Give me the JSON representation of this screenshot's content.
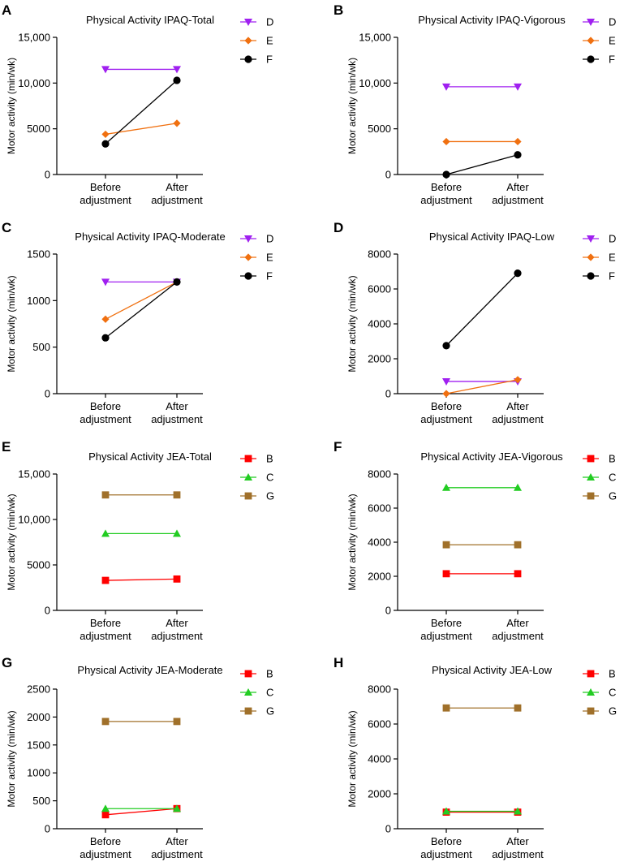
{
  "chart_data": [
    {
      "panel": "A",
      "type": "line",
      "title": "Physical Activity IPAQ-Total",
      "ylabel": "Motor activity (min/wk)",
      "categories": [
        [
          "Before",
          "adjustment"
        ],
        [
          "After",
          "adjustment"
        ]
      ],
      "ylim": [
        0,
        15000
      ],
      "yticks": [
        0,
        5000,
        10000,
        15000
      ],
      "ytick_labels": [
        "0",
        "5000",
        "10,000",
        "15,000"
      ],
      "series": [
        {
          "name": "D",
          "color": "#a020f0",
          "marker": "triangle-down",
          "values": [
            11500,
            11500
          ]
        },
        {
          "name": "E",
          "color": "#f07010",
          "marker": "diamond",
          "values": [
            4400,
            5600
          ]
        },
        {
          "name": "F",
          "color": "#000000",
          "marker": "circle",
          "values": [
            3350,
            10300
          ]
        }
      ]
    },
    {
      "panel": "B",
      "type": "line",
      "title": "Physical Activity IPAQ-Vigorous",
      "ylabel": "Motor activity (min/wk)",
      "categories": [
        [
          "Before",
          "adjustment"
        ],
        [
          "After",
          "adjustment"
        ]
      ],
      "ylim": [
        0,
        15000
      ],
      "yticks": [
        0,
        5000,
        10000,
        15000
      ],
      "ytick_labels": [
        "0",
        "5000",
        "10,000",
        "15,000"
      ],
      "series": [
        {
          "name": "D",
          "color": "#a020f0",
          "marker": "triangle-down",
          "values": [
            9600,
            9600
          ]
        },
        {
          "name": "E",
          "color": "#f07010",
          "marker": "diamond",
          "values": [
            3600,
            3600
          ]
        },
        {
          "name": "F",
          "color": "#000000",
          "marker": "circle",
          "values": [
            0,
            2150
          ]
        }
      ]
    },
    {
      "panel": "C",
      "type": "line",
      "title": "Physical Activity IPAQ-Moderate",
      "ylabel": "Motor activity (min/wk)",
      "categories": [
        [
          "Before",
          "adjustment"
        ],
        [
          "After",
          "adjustment"
        ]
      ],
      "ylim": [
        0,
        1500
      ],
      "yticks": [
        0,
        500,
        1000,
        1500
      ],
      "ytick_labels": [
        "0",
        "500",
        "1000",
        "1500"
      ],
      "series": [
        {
          "name": "D",
          "color": "#a020f0",
          "marker": "triangle-down",
          "values": [
            1200,
            1200
          ]
        },
        {
          "name": "E",
          "color": "#f07010",
          "marker": "diamond",
          "values": [
            800,
            1200
          ]
        },
        {
          "name": "F",
          "color": "#000000",
          "marker": "circle",
          "values": [
            600,
            1200
          ]
        }
      ]
    },
    {
      "panel": "D",
      "type": "line",
      "title": "Physical Activity IPAQ-Low",
      "ylabel": "Motor activity (min/wk)",
      "categories": [
        [
          "Before",
          "adjustment"
        ],
        [
          "After",
          "adjustment"
        ]
      ],
      "ylim": [
        0,
        8000
      ],
      "yticks": [
        0,
        2000,
        4000,
        6000,
        8000
      ],
      "ytick_labels": [
        "0",
        "2000",
        "4000",
        "6000",
        "8000"
      ],
      "series": [
        {
          "name": "D",
          "color": "#a020f0",
          "marker": "triangle-down",
          "values": [
            700,
            700
          ]
        },
        {
          "name": "E",
          "color": "#f07010",
          "marker": "diamond",
          "values": [
            0,
            800
          ]
        },
        {
          "name": "F",
          "color": "#000000",
          "marker": "circle",
          "values": [
            2750,
            6900
          ]
        }
      ]
    },
    {
      "panel": "E",
      "type": "line",
      "title": "Physical Activity JEA-Total",
      "ylabel": "Motor activity (min/wk)",
      "categories": [
        [
          "Before",
          "adjustment"
        ],
        [
          "After",
          "adjustment"
        ]
      ],
      "ylim": [
        0,
        15000
      ],
      "yticks": [
        0,
        5000,
        10000,
        15000
      ],
      "ytick_labels": [
        "0",
        "5000",
        "10,000",
        "15,000"
      ],
      "series": [
        {
          "name": "B",
          "color": "#ff0000",
          "marker": "square",
          "values": [
            3300,
            3450
          ]
        },
        {
          "name": "C",
          "color": "#22cc22",
          "marker": "triangle-up",
          "values": [
            8450,
            8450
          ]
        },
        {
          "name": "G",
          "color": "#a0702a",
          "marker": "square",
          "values": [
            12700,
            12700
          ]
        }
      ]
    },
    {
      "panel": "F",
      "type": "line",
      "title": "Physical Activity JEA-Vigorous",
      "ylabel": "Motor activity (min/wk)",
      "categories": [
        [
          "Before",
          "adjustment"
        ],
        [
          "After",
          "adjustment"
        ]
      ],
      "ylim": [
        0,
        8000
      ],
      "yticks": [
        0,
        2000,
        4000,
        6000,
        8000
      ],
      "ytick_labels": [
        "0",
        "2000",
        "4000",
        "6000",
        "8000"
      ],
      "series": [
        {
          "name": "B",
          "color": "#ff0000",
          "marker": "square",
          "values": [
            2150,
            2150
          ]
        },
        {
          "name": "C",
          "color": "#22cc22",
          "marker": "triangle-up",
          "values": [
            7200,
            7200
          ]
        },
        {
          "name": "G",
          "color": "#a0702a",
          "marker": "square",
          "values": [
            3850,
            3850
          ]
        }
      ]
    },
    {
      "panel": "G",
      "type": "line",
      "title": "Physical Activity JEA-Moderate",
      "ylabel": "Motor activity (min/wk)",
      "categories": [
        [
          "Before",
          "adjustment"
        ],
        [
          "After",
          "adjustment"
        ]
      ],
      "ylim": [
        0,
        2500
      ],
      "yticks": [
        0,
        500,
        1000,
        1500,
        2000,
        2500
      ],
      "ytick_labels": [
        "0",
        "500",
        "1000",
        "1500",
        "2000",
        "2500"
      ],
      "series": [
        {
          "name": "B",
          "color": "#ff0000",
          "marker": "square",
          "values": [
            250,
            360
          ]
        },
        {
          "name": "C",
          "color": "#22cc22",
          "marker": "triangle-up",
          "values": [
            360,
            360
          ]
        },
        {
          "name": "G",
          "color": "#a0702a",
          "marker": "square",
          "values": [
            1920,
            1920
          ]
        }
      ]
    },
    {
      "panel": "H",
      "type": "line",
      "title": "Physical Activity JEA-Low",
      "ylabel": "Motor activity (min/wk)",
      "categories": [
        [
          "Before",
          "adjustment"
        ],
        [
          "After",
          "adjustment"
        ]
      ],
      "ylim": [
        0,
        8000
      ],
      "yticks": [
        0,
        2000,
        4000,
        6000,
        8000
      ],
      "ytick_labels": [
        "0",
        "2000",
        "4000",
        "6000",
        "8000"
      ],
      "series": [
        {
          "name": "B",
          "color": "#ff0000",
          "marker": "square",
          "values": [
            950,
            950
          ]
        },
        {
          "name": "C",
          "color": "#22cc22",
          "marker": "triangle-up",
          "values": [
            1000,
            1000
          ]
        },
        {
          "name": "G",
          "color": "#a0702a",
          "marker": "square",
          "values": [
            6920,
            6920
          ]
        }
      ]
    }
  ]
}
